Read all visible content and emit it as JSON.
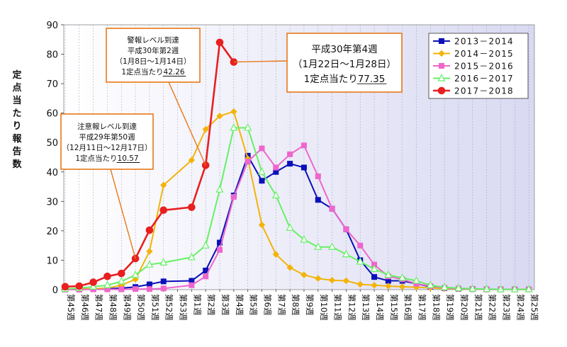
{
  "chart_data": {
    "type": "line",
    "ylabel": "定点当たり報告数",
    "ylim": [
      0,
      90
    ],
    "yticks": [
      0,
      10,
      20,
      30,
      40,
      50,
      60,
      70,
      80,
      90
    ],
    "grid": "vertical-dashed",
    "legend_position": "top-right",
    "categories": [
      "第45週",
      "第46週",
      "第47週",
      "第48週",
      "第49週",
      "第50週",
      "第51週",
      "第52週",
      "第53週",
      "第1週",
      "第2週",
      "第3週",
      "第4週",
      "第5週",
      "第6週",
      "第7週",
      "第8週",
      "第9週",
      "第10週",
      "第11週",
      "第12週",
      "第13週",
      "第14週",
      "第15週",
      "第16週",
      "第17週",
      "第18週",
      "第19週",
      "第20週",
      "第21週",
      "第22週",
      "第23週",
      "第24週",
      "第25週"
    ],
    "series": [
      {
        "name": "2013－2014",
        "color": "#0b10b8",
        "marker": "square",
        "values": [
          0.2,
          0.2,
          0.2,
          0.3,
          0.5,
          0.9,
          1.8,
          2.8,
          null,
          3.0,
          6.5,
          16.0,
          32.0,
          45.5,
          37.0,
          40.0,
          42.8,
          41.5,
          30.5,
          27.5,
          20.5,
          10.0,
          4.3,
          3.0,
          3.0,
          2.0,
          1.0,
          0.5,
          0.3,
          0.2,
          0.1,
          0.1,
          0.1,
          0.1
        ]
      },
      {
        "name": "2014－2015",
        "color": "#f2b40a",
        "marker": "diamond",
        "values": [
          0.2,
          0.2,
          0.3,
          0.5,
          1.5,
          3.5,
          13.0,
          35.5,
          null,
          44.0,
          54.5,
          59.0,
          60.5,
          44.5,
          22.0,
          12.0,
          7.5,
          5.0,
          3.8,
          3.2,
          3.0,
          1.8,
          1.5,
          1.2,
          1.0,
          0.8,
          0.6,
          0.4,
          0.3,
          0.2,
          0.1,
          0.1,
          0.1,
          0.1
        ]
      },
      {
        "name": "2015－2016",
        "color": "#ee66cc",
        "marker": "square",
        "values": [
          0.0,
          0.0,
          0.1,
          0.1,
          0.1,
          0.2,
          0.2,
          0.4,
          null,
          1.5,
          4.5,
          13.5,
          31.5,
          43.5,
          48.0,
          41.5,
          46.0,
          49.0,
          38.5,
          27.5,
          20.5,
          15.0,
          8.5,
          4.5,
          3.5,
          2.0,
          1.2,
          0.6,
          0.4,
          0.2,
          0.1,
          0.1,
          0.1,
          0.1
        ]
      },
      {
        "name": "2016－2017",
        "color": "#66f066",
        "marker": "triangle",
        "values": [
          0.2,
          0.5,
          1.0,
          1.5,
          2.8,
          5.0,
          8.5,
          9.2,
          null,
          11.0,
          15.0,
          34.0,
          55.0,
          55.0,
          40.0,
          32.0,
          21.0,
          17.0,
          14.5,
          14.5,
          12.0,
          9.5,
          7.0,
          5.0,
          4.0,
          3.0,
          1.5,
          0.8,
          0.5,
          0.3,
          0.2,
          0.1,
          0.1,
          0.1
        ]
      },
      {
        "name": "2017－2018",
        "color": "#e82020",
        "marker": "circle",
        "values": [
          1.0,
          1.2,
          2.5,
          4.5,
          5.5,
          10.57,
          20.2,
          27.0,
          null,
          28.0,
          42.26,
          84.0,
          77.35,
          null,
          null,
          null,
          null,
          null,
          null,
          null,
          null,
          null,
          null,
          null,
          null,
          null,
          null,
          null,
          null,
          null,
          null,
          null,
          null,
          null
        ]
      }
    ],
    "annotations": [
      {
        "lines": [
          "注意報レベル到達",
          "平成29年第50週",
          "（12月11日～12月17日）",
          "1定点当たり10.57"
        ],
        "underline_value": "10.57",
        "target": {
          "category_index": 5,
          "value": 10.57
        }
      },
      {
        "lines": [
          "警報レベル到達",
          "平成30年第2週",
          "（1月8日～1月14日）",
          "1定点当たり42.26"
        ],
        "underline_value": "42.26",
        "target": {
          "category_index": 10,
          "value": 42.26
        }
      },
      {
        "lines": [
          "平成30年第4週",
          "（1月22日～1月28日）",
          "1定点当たり77.35"
        ],
        "underline_value": "77.35",
        "target": {
          "category_index": 12,
          "value": 77.35
        }
      }
    ]
  }
}
